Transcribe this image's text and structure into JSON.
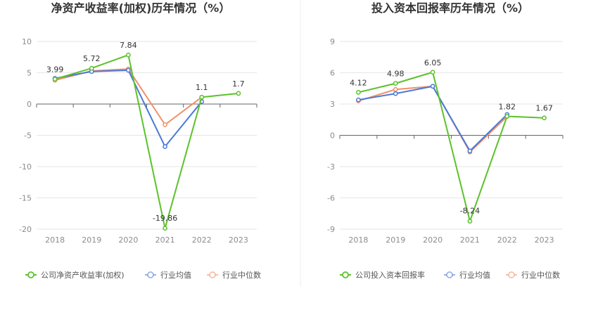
{
  "chart_data": [
    {
      "type": "line",
      "title": "净资产收益率(加权)历年情况（%）",
      "categories": [
        "2018",
        "2019",
        "2020",
        "2021",
        "2022",
        "2023"
      ],
      "ylim": [
        -20,
        10
      ],
      "yticks": [
        10,
        5,
        0,
        -5,
        -10,
        -15,
        -20
      ],
      "grid": true,
      "legend_position": "bottom",
      "series": [
        {
          "name": "公司净资产收益率(加权)",
          "color": "#5bc22a",
          "values": [
            3.99,
            5.72,
            7.84,
            -19.86,
            1.1,
            1.7
          ],
          "labels": [
            "3.99",
            "5.72",
            "7.84",
            "-19.86",
            "1.1",
            "1.7"
          ]
        },
        {
          "name": "行业均值",
          "color": "#4a79d6",
          "values": [
            4.1,
            5.2,
            5.4,
            -6.8,
            0.4,
            null
          ]
        },
        {
          "name": "行业中位数",
          "color": "#f0906a",
          "values": [
            3.8,
            5.3,
            5.6,
            -3.3,
            1.1,
            null
          ]
        }
      ]
    },
    {
      "type": "line",
      "title": "投入资本回报率历年情况（%）",
      "categories": [
        "2018",
        "2019",
        "2020",
        "2021",
        "2022",
        "2023"
      ],
      "ylim": [
        -9,
        9
      ],
      "yticks": [
        9,
        6,
        3,
        0,
        -3,
        -6,
        -9
      ],
      "grid": true,
      "legend_position": "bottom",
      "series": [
        {
          "name": "公司投入资本回报率",
          "color": "#5bc22a",
          "values": [
            4.12,
            4.98,
            6.05,
            -8.24,
            1.82,
            1.67
          ],
          "labels": [
            "4.12",
            "4.98",
            "6.05",
            "-8.24",
            "1.82",
            "1.67"
          ]
        },
        {
          "name": "行业均值",
          "color": "#4a79d6",
          "values": [
            3.4,
            4.0,
            4.7,
            -1.5,
            2.0,
            null
          ]
        },
        {
          "name": "行业中位数",
          "color": "#f0906a",
          "values": [
            3.3,
            4.4,
            4.7,
            -1.6,
            1.8,
            null
          ]
        }
      ]
    }
  ]
}
